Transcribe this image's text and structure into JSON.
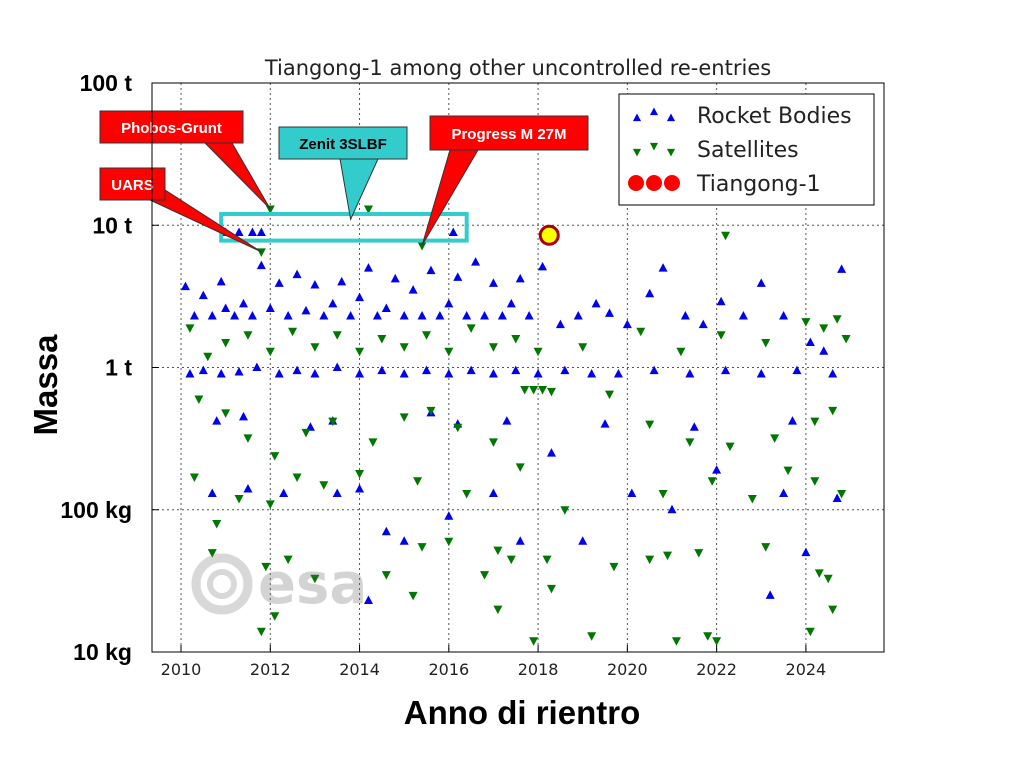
{
  "chart_data": {
    "type": "scatter",
    "title": "Tiangong-1 among other uncontrolled re-entries",
    "xlabel": "Anno di rientro",
    "ylabel": "Massa",
    "xlim": [
      2009.35,
      2025.75
    ],
    "ylim_kg": [
      10,
      100000
    ],
    "y_scale": "log",
    "grid": true,
    "x_ticks": [
      2010,
      2012,
      2014,
      2016,
      2018,
      2020,
      2022,
      2024
    ],
    "y_ticks": [
      {
        "value": 100000,
        "label": "100 t"
      },
      {
        "value": 10000,
        "label": "10 t"
      },
      {
        "value": 1000,
        "label": "1 t"
      },
      {
        "value": 100,
        "label": "100 kg"
      },
      {
        "value": 10,
        "label": "10 kg"
      }
    ],
    "legend_position": "top-right",
    "series": [
      {
        "name": "Rocket Bodies",
        "marker": "triangle-up",
        "color": "#0000ee",
        "points": [
          [
            2010.1,
            3700
          ],
          [
            2010.3,
            2300
          ],
          [
            2010.5,
            3200
          ],
          [
            2010.7,
            2300
          ],
          [
            2010.9,
            4000
          ],
          [
            2011.0,
            2600
          ],
          [
            2011.2,
            2300
          ],
          [
            2011.4,
            2800
          ],
          [
            2011.6,
            2300
          ],
          [
            2011.8,
            5200
          ],
          [
            2012.0,
            2600
          ],
          [
            2012.2,
            3900
          ],
          [
            2012.4,
            2300
          ],
          [
            2012.6,
            4500
          ],
          [
            2012.8,
            2500
          ],
          [
            2013.0,
            3800
          ],
          [
            2013.2,
            2300
          ],
          [
            2013.4,
            2800
          ],
          [
            2013.6,
            4000
          ],
          [
            2013.8,
            2300
          ],
          [
            2014.0,
            3100
          ],
          [
            2014.2,
            5000
          ],
          [
            2014.4,
            2300
          ],
          [
            2014.6,
            2600
          ],
          [
            2014.8,
            4200
          ],
          [
            2015.0,
            2300
          ],
          [
            2015.2,
            3500
          ],
          [
            2015.4,
            2300
          ],
          [
            2015.6,
            4800
          ],
          [
            2015.8,
            2300
          ],
          [
            2016.0,
            2800
          ],
          [
            2016.2,
            4300
          ],
          [
            2016.4,
            2300
          ],
          [
            2016.6,
            5500
          ],
          [
            2016.8,
            2300
          ],
          [
            2017.0,
            3900
          ],
          [
            2017.2,
            2300
          ],
          [
            2017.4,
            2800
          ],
          [
            2017.6,
            4200
          ],
          [
            2017.8,
            2300
          ],
          [
            2018.1,
            5100
          ],
          [
            2018.5,
            2000
          ],
          [
            2018.9,
            2300
          ],
          [
            2019.3,
            2800
          ],
          [
            2019.6,
            2400
          ],
          [
            2020.0,
            2000
          ],
          [
            2020.5,
            3300
          ],
          [
            2020.8,
            5000
          ],
          [
            2021.3,
            2300
          ],
          [
            2021.7,
            2000
          ],
          [
            2022.1,
            2900
          ],
          [
            2022.6,
            2300
          ],
          [
            2023.0,
            3900
          ],
          [
            2023.5,
            2300
          ],
          [
            2024.1,
            1500
          ],
          [
            2024.4,
            1300
          ],
          [
            2024.8,
            4900
          ],
          [
            2010.2,
            900
          ],
          [
            2010.5,
            950
          ],
          [
            2010.9,
            900
          ],
          [
            2011.3,
            930
          ],
          [
            2011.7,
            1000
          ],
          [
            2012.2,
            900
          ],
          [
            2012.6,
            950
          ],
          [
            2013.0,
            900
          ],
          [
            2013.5,
            1000
          ],
          [
            2014.0,
            900
          ],
          [
            2014.5,
            950
          ],
          [
            2015.0,
            900
          ],
          [
            2015.5,
            950
          ],
          [
            2016.0,
            900
          ],
          [
            2016.5,
            950
          ],
          [
            2017.0,
            900
          ],
          [
            2017.5,
            950
          ],
          [
            2018.0,
            900
          ],
          [
            2018.6,
            950
          ],
          [
            2019.2,
            900
          ],
          [
            2019.8,
            900
          ],
          [
            2020.6,
            950
          ],
          [
            2021.4,
            900
          ],
          [
            2022.2,
            950
          ],
          [
            2023.0,
            900
          ],
          [
            2023.8,
            950
          ],
          [
            2024.6,
            900
          ],
          [
            2010.7,
            130
          ],
          [
            2011.5,
            140
          ],
          [
            2012.3,
            130
          ],
          [
            2013.5,
            130
          ],
          [
            2014.0,
            140
          ],
          [
            2014.6,
            70
          ],
          [
            2015.0,
            60
          ],
          [
            2016.0,
            90
          ],
          [
            2017.0,
            130
          ],
          [
            2017.6,
            60
          ],
          [
            2018.3,
            250
          ],
          [
            2019.0,
            60
          ],
          [
            2020.1,
            130
          ],
          [
            2021.0,
            100
          ],
          [
            2022.0,
            190
          ],
          [
            2023.2,
            25
          ],
          [
            2023.5,
            130
          ],
          [
            2024.0,
            50
          ],
          [
            2024.7,
            120
          ],
          [
            2010.8,
            420
          ],
          [
            2011.4,
            450
          ],
          [
            2012.9,
            380
          ],
          [
            2013.4,
            420
          ],
          [
            2015.6,
            480
          ],
          [
            2016.2,
            400
          ],
          [
            2017.3,
            420
          ],
          [
            2019.5,
            400
          ],
          [
            2021.5,
            380
          ],
          [
            2023.7,
            420
          ],
          [
            2011.0,
            8900
          ],
          [
            2011.3,
            8900
          ],
          [
            2011.6,
            8900
          ],
          [
            2011.8,
            8900
          ],
          [
            2016.1,
            8900
          ],
          [
            2014.2,
            23
          ]
        ]
      },
      {
        "name": "Satellites",
        "marker": "triangle-down",
        "color": "#007700",
        "points": [
          [
            2010.2,
            1900
          ],
          [
            2010.6,
            1200
          ],
          [
            2011.0,
            1500
          ],
          [
            2011.5,
            1700
          ],
          [
            2012.0,
            1300
          ],
          [
            2012.5,
            1800
          ],
          [
            2013.0,
            1400
          ],
          [
            2013.5,
            1700
          ],
          [
            2014.0,
            1300
          ],
          [
            2014.5,
            1600
          ],
          [
            2015.0,
            1400
          ],
          [
            2015.5,
            1700
          ],
          [
            2016.0,
            1300
          ],
          [
            2016.5,
            1900
          ],
          [
            2017.0,
            1400
          ],
          [
            2017.5,
            1600
          ],
          [
            2018.0,
            1300
          ],
          [
            2019.0,
            1400
          ],
          [
            2020.3,
            1800
          ],
          [
            2021.2,
            1300
          ],
          [
            2022.1,
            1700
          ],
          [
            2023.1,
            1500
          ],
          [
            2024.0,
            2100
          ],
          [
            2024.4,
            1900
          ],
          [
            2024.7,
            2200
          ],
          [
            2024.9,
            1600
          ],
          [
            2010.4,
            600
          ],
          [
            2011.0,
            480
          ],
          [
            2011.5,
            320
          ],
          [
            2012.1,
            240
          ],
          [
            2012.8,
            350
          ],
          [
            2013.4,
            420
          ],
          [
            2014.3,
            300
          ],
          [
            2015.0,
            450
          ],
          [
            2015.6,
            500
          ],
          [
            2016.2,
            380
          ],
          [
            2017.0,
            300
          ],
          [
            2017.7,
            700
          ],
          [
            2017.9,
            700
          ],
          [
            2018.1,
            700
          ],
          [
            2018.3,
            680
          ],
          [
            2019.6,
            650
          ],
          [
            2020.5,
            400
          ],
          [
            2021.4,
            300
          ],
          [
            2022.3,
            280
          ],
          [
            2023.3,
            320
          ],
          [
            2024.2,
            420
          ],
          [
            2024.6,
            500
          ],
          [
            2010.3,
            170
          ],
          [
            2010.8,
            80
          ],
          [
            2011.3,
            120
          ],
          [
            2012.0,
            110
          ],
          [
            2012.6,
            170
          ],
          [
            2013.2,
            150
          ],
          [
            2014.0,
            180
          ],
          [
            2015.3,
            160
          ],
          [
            2016.4,
            130
          ],
          [
            2017.6,
            200
          ],
          [
            2018.6,
            100
          ],
          [
            2020.8,
            130
          ],
          [
            2021.9,
            160
          ],
          [
            2022.8,
            120
          ],
          [
            2023.6,
            190
          ],
          [
            2024.2,
            160
          ],
          [
            2024.8,
            130
          ],
          [
            2010.7,
            50
          ],
          [
            2011.9,
            40
          ],
          [
            2012.4,
            45
          ],
          [
            2013.0,
            33
          ],
          [
            2014.6,
            35
          ],
          [
            2015.4,
            55
          ],
          [
            2016.0,
            60
          ],
          [
            2017.1,
            52
          ],
          [
            2017.4,
            45
          ],
          [
            2018.2,
            45
          ],
          [
            2019.7,
            40
          ],
          [
            2020.5,
            45
          ],
          [
            2020.9,
            48
          ],
          [
            2021.6,
            50
          ],
          [
            2023.1,
            55
          ],
          [
            2024.3,
            36
          ],
          [
            2024.5,
            33
          ],
          [
            2011.8,
            14
          ],
          [
            2012.1,
            18
          ],
          [
            2015.2,
            25
          ],
          [
            2016.8,
            35
          ],
          [
            2017.1,
            20
          ],
          [
            2017.9,
            12
          ],
          [
            2018.3,
            28
          ],
          [
            2019.2,
            13
          ],
          [
            2021.1,
            12
          ],
          [
            2021.8,
            13
          ],
          [
            2022.0,
            12
          ],
          [
            2024.1,
            14
          ],
          [
            2024.6,
            20
          ],
          [
            2011.8,
            6500
          ],
          [
            2012.0,
            13000
          ],
          [
            2014.2,
            13000
          ],
          [
            2015.4,
            7200
          ],
          [
            2022.2,
            8500
          ]
        ]
      },
      {
        "name": "Tiangong-1",
        "marker": "circle",
        "color": "#ff0000",
        "points": [
          [
            2018.25,
            8500
          ]
        ]
      }
    ],
    "annotations": [
      {
        "text": "Phobos-Grunt",
        "x": 2012.0,
        "y": 13000,
        "color": "#ff0000"
      },
      {
        "text": "UARS",
        "x": 2011.8,
        "y": 6500,
        "color": "#ff0000"
      },
      {
        "text": "Zenit 3SLBF",
        "x": 2013.8,
        "y": 11000,
        "color": "#33cccc"
      },
      {
        "text": "Progress M 27M",
        "x": 2015.4,
        "y": 7200,
        "color": "#ff0000"
      }
    ],
    "highlight_box": {
      "x0": 2010.9,
      "x1": 2016.4,
      "y0": 7800,
      "y1": 12000,
      "color": "#33cccc"
    }
  },
  "logo": {
    "text": "esa"
  },
  "colors": {
    "rocket": "#0000ee",
    "satellite": "#007700",
    "tiangong_edge": "#aa0000",
    "tiangong_fill": "#ffff00",
    "callout_red": "#ff0000",
    "callout_cyan": "#33cccc"
  }
}
